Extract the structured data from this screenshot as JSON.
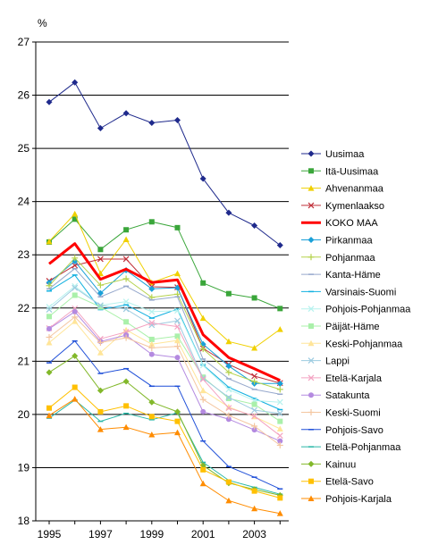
{
  "chart_data": {
    "type": "line",
    "ylabel": "%",
    "ylim": [
      18,
      27
    ],
    "yticks": [
      "18",
      "19",
      "20",
      "21",
      "22",
      "23",
      "24",
      "25",
      "26",
      "27"
    ],
    "xticks": [
      "1995",
      "1997",
      "1999",
      "2001",
      "2003"
    ],
    "x": [
      1995,
      1996,
      1997,
      1998,
      1999,
      2000,
      2001,
      2002,
      2003,
      2004
    ],
    "grid": "horizontal",
    "legend_position": "right",
    "series": [
      {
        "name": "Uusimaa",
        "color": "#1f2a8c",
        "marker": "diamond",
        "values": [
          25.87,
          26.24,
          25.38,
          25.66,
          25.48,
          25.53,
          24.43,
          23.79,
          23.55,
          23.18
        ]
      },
      {
        "name": "Itä-Uusimaa",
        "color": "#3aa63a",
        "marker": "square",
        "values": [
          23.24,
          23.67,
          23.1,
          23.47,
          23.62,
          23.51,
          22.47,
          22.27,
          22.19,
          21.99
        ]
      },
      {
        "name": "Ahvenanmaa",
        "color": "#f0d000",
        "marker": "triangle",
        "values": [
          23.25,
          23.77,
          22.65,
          23.29,
          22.48,
          22.65,
          21.81,
          21.37,
          21.25,
          21.6
        ]
      },
      {
        "name": "Kymenlaakso",
        "color": "#c0303a",
        "marker": "x",
        "values": [
          22.51,
          22.8,
          22.92,
          22.92,
          22.4,
          22.39,
          21.24,
          20.94,
          20.72,
          20.59
        ]
      },
      {
        "name": "KOKO MAA",
        "color": "#ff0000",
        "marker": "none",
        "thick": true,
        "values": [
          22.83,
          23.21,
          22.54,
          22.73,
          22.48,
          22.53,
          21.5,
          21.07,
          20.86,
          20.64
        ]
      },
      {
        "name": "Pirkanmaa",
        "color": "#1aa0d8",
        "marker": "diamond",
        "values": [
          22.48,
          22.88,
          22.28,
          22.71,
          22.36,
          22.38,
          21.32,
          20.91,
          20.58,
          20.58
        ]
      },
      {
        "name": "Pohjanmaa",
        "color": "#b5d24c",
        "marker": "plus",
        "values": [
          22.42,
          22.94,
          22.43,
          22.55,
          22.2,
          22.26,
          21.23,
          20.79,
          20.62,
          20.47
        ]
      },
      {
        "name": "Kanta-Häme",
        "color": "#96a8cc",
        "marker": "line",
        "values": [
          22.36,
          22.74,
          22.21,
          22.41,
          22.15,
          22.21,
          21.04,
          20.67,
          20.47,
          20.38
        ]
      },
      {
        "name": "Varsinais-Suomi",
        "color": "#11b0e0",
        "marker": "line",
        "values": [
          22.32,
          22.62,
          21.97,
          22.06,
          21.81,
          21.98,
          20.93,
          20.51,
          20.3,
          20.09
        ]
      },
      {
        "name": "Pohjois-Pohjanmaa",
        "color": "#b6f2ee",
        "marker": "x",
        "values": [
          22.02,
          22.41,
          22.05,
          22.12,
          21.93,
          21.95,
          20.92,
          20.47,
          20.26,
          20.23
        ]
      },
      {
        "name": "Päijät-Häme",
        "color": "#aaf0aa",
        "marker": "square",
        "values": [
          21.84,
          22.24,
          22.02,
          21.74,
          21.41,
          21.47,
          20.7,
          20.3,
          20.19,
          19.87
        ]
      },
      {
        "name": "Keski-Pohjanmaa",
        "color": "#ffe599",
        "marker": "triangle",
        "values": [
          21.35,
          21.75,
          21.16,
          21.59,
          21.32,
          21.39,
          20.45,
          20.14,
          19.96,
          19.73
        ]
      },
      {
        "name": "Lappi",
        "color": "#9ccbe0",
        "marker": "x",
        "values": [
          21.97,
          22.38,
          22.05,
          21.98,
          21.68,
          21.76,
          20.68,
          20.32,
          20.08,
          20.02
        ]
      },
      {
        "name": "Etelä-Karjala",
        "color": "#f4a3c2",
        "marker": "x",
        "values": [
          21.62,
          21.99,
          21.42,
          21.55,
          21.72,
          21.65,
          20.66,
          20.12,
          19.97,
          19.6
        ]
      },
      {
        "name": "Satakunta",
        "color": "#b48ae0",
        "marker": "circle",
        "values": [
          21.61,
          21.93,
          21.37,
          21.49,
          21.13,
          21.07,
          20.05,
          19.91,
          19.71,
          19.5
        ]
      },
      {
        "name": "Keski-Suomi",
        "color": "#f4c6a0",
        "marker": "plus",
        "values": [
          21.45,
          21.83,
          21.35,
          21.44,
          21.25,
          21.28,
          20.28,
          19.98,
          19.78,
          19.42
        ]
      },
      {
        "name": "Pohjois-Savo",
        "color": "#1f4fd8",
        "marker": "line",
        "values": [
          20.97,
          21.38,
          20.77,
          20.86,
          20.53,
          20.53,
          19.5,
          19.02,
          18.82,
          18.6
        ]
      },
      {
        "name": "Etelä-Pohjanmaa",
        "color": "#2ab8a8",
        "marker": "line",
        "values": [
          19.93,
          20.27,
          19.87,
          20.02,
          19.9,
          20.03,
          19.1,
          18.76,
          18.63,
          18.5
        ]
      },
      {
        "name": "Kainuu",
        "color": "#82b82a",
        "marker": "diamond",
        "values": [
          20.79,
          21.1,
          20.45,
          20.62,
          20.23,
          20.05,
          19.04,
          18.71,
          18.59,
          18.48
        ]
      },
      {
        "name": "Etelä-Savo",
        "color": "#ffc000",
        "marker": "square",
        "values": [
          20.12,
          20.51,
          20.05,
          20.16,
          19.96,
          19.87,
          18.96,
          18.73,
          18.56,
          18.43
        ]
      },
      {
        "name": "Pohjois-Karjala",
        "color": "#ff8c00",
        "marker": "triangle",
        "values": [
          19.98,
          20.29,
          19.72,
          19.76,
          19.62,
          19.66,
          18.7,
          18.38,
          18.23,
          18.14
        ]
      }
    ]
  }
}
